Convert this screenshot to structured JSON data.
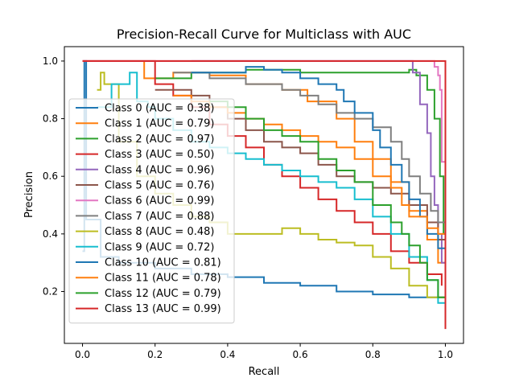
{
  "chart_data": {
    "type": "line",
    "title": "Precision-Recall Curve for Multiclass with AUC",
    "xlabel": "Recall",
    "ylabel": "Precision",
    "xlim": [
      -0.05,
      1.05
    ],
    "ylim": [
      0.02,
      1.05
    ],
    "xticks": [
      0.0,
      0.2,
      0.4,
      0.6,
      0.8,
      1.0
    ],
    "xtick_labels": [
      "0.0",
      "0.2",
      "0.4",
      "0.6",
      "0.8",
      "1.0"
    ],
    "yticks": [
      0.2,
      0.4,
      0.6,
      0.8,
      1.0
    ],
    "ytick_labels": [
      "0.2",
      "0.4",
      "0.6",
      "0.8",
      "1.0"
    ],
    "grid": false,
    "legend_position": "lower-left",
    "series": [
      {
        "name": "Class 0 (AUC = 0.38)",
        "color": "#1f77b4",
        "points": [
          [
            0.0,
            0.34
          ],
          [
            0.005,
            1.0
          ],
          [
            0.01,
            0.45
          ],
          [
            0.05,
            0.32
          ],
          [
            0.1,
            0.3
          ],
          [
            0.2,
            0.28
          ],
          [
            0.3,
            0.26
          ],
          [
            0.4,
            0.25
          ],
          [
            0.5,
            0.23
          ],
          [
            0.6,
            0.22
          ],
          [
            0.7,
            0.2
          ],
          [
            0.8,
            0.19
          ],
          [
            0.9,
            0.18
          ],
          [
            1.0,
            0.16
          ]
        ]
      },
      {
        "name": "Class 1 (AUC = 0.79)",
        "color": "#ff7f0e",
        "points": [
          [
            0.17,
            1.0
          ],
          [
            0.17,
            0.94
          ],
          [
            0.25,
            0.96
          ],
          [
            0.35,
            0.95
          ],
          [
            0.45,
            0.92
          ],
          [
            0.55,
            0.9
          ],
          [
            0.62,
            0.86
          ],
          [
            0.7,
            0.8
          ],
          [
            0.75,
            0.72
          ],
          [
            0.8,
            0.66
          ],
          [
            0.85,
            0.58
          ],
          [
            0.9,
            0.48
          ],
          [
            0.95,
            0.38
          ],
          [
            0.98,
            0.3
          ],
          [
            1.0,
            0.2
          ]
        ]
      },
      {
        "name": "Class 2 (AUC = 0.97)",
        "color": "#2ca02c",
        "points": [
          [
            0.2,
            0.94
          ],
          [
            0.3,
            0.96
          ],
          [
            0.45,
            0.97
          ],
          [
            0.6,
            0.96
          ],
          [
            0.75,
            0.96
          ],
          [
            0.9,
            0.97
          ],
          [
            0.92,
            0.95
          ],
          [
            0.95,
            0.9
          ],
          [
            0.97,
            0.8
          ],
          [
            0.985,
            0.6
          ],
          [
            0.995,
            0.4
          ],
          [
            1.0,
            0.1
          ]
        ]
      },
      {
        "name": "Class 3 (AUC = 0.50)",
        "color": "#d62728",
        "points": [
          [
            0.0,
            1.0
          ],
          [
            0.1,
            1.0
          ],
          [
            0.18,
            1.0
          ],
          [
            0.2,
            0.92
          ],
          [
            0.25,
            0.88
          ],
          [
            0.3,
            0.84
          ],
          [
            0.35,
            0.78
          ],
          [
            0.4,
            0.74
          ],
          [
            0.45,
            0.7
          ],
          [
            0.5,
            0.64
          ],
          [
            0.55,
            0.6
          ],
          [
            0.6,
            0.56
          ],
          [
            0.65,
            0.52
          ],
          [
            0.7,
            0.48
          ],
          [
            0.75,
            0.44
          ],
          [
            0.8,
            0.4
          ],
          [
            0.85,
            0.34
          ],
          [
            0.9,
            0.3
          ],
          [
            0.95,
            0.26
          ],
          [
            0.99,
            0.22
          ]
        ]
      },
      {
        "name": "Class 4 (AUC = 0.96)",
        "color": "#9467bd",
        "points": [
          [
            0.3,
            1.0
          ],
          [
            0.6,
            1.0
          ],
          [
            0.9,
            1.0
          ],
          [
            0.91,
            0.96
          ],
          [
            0.93,
            0.85
          ],
          [
            0.95,
            0.75
          ],
          [
            0.96,
            0.6
          ],
          [
            0.97,
            0.5
          ],
          [
            0.98,
            0.4
          ],
          [
            0.99,
            0.3
          ],
          [
            1.0,
            0.2
          ]
        ]
      },
      {
        "name": "Class 5 (AUC = 0.76)",
        "color": "#8c564b",
        "points": [
          [
            0.2,
            0.9
          ],
          [
            0.3,
            0.88
          ],
          [
            0.35,
            0.84
          ],
          [
            0.4,
            0.8
          ],
          [
            0.45,
            0.76
          ],
          [
            0.5,
            0.72
          ],
          [
            0.55,
            0.7
          ],
          [
            0.6,
            0.68
          ],
          [
            0.65,
            0.64
          ],
          [
            0.7,
            0.6
          ],
          [
            0.75,
            0.58
          ],
          [
            0.8,
            0.56
          ],
          [
            0.85,
            0.54
          ],
          [
            0.9,
            0.5
          ],
          [
            0.95,
            0.44
          ],
          [
            0.98,
            0.38
          ],
          [
            1.0,
            0.3
          ]
        ]
      },
      {
        "name": "Class 6 (AUC = 0.99)",
        "color": "#e377c2",
        "points": [
          [
            0.0,
            1.0
          ],
          [
            0.5,
            1.0
          ],
          [
            0.8,
            1.0
          ],
          [
            0.95,
            1.0
          ],
          [
            0.97,
            0.98
          ],
          [
            0.98,
            0.95
          ],
          [
            0.985,
            0.9
          ],
          [
            0.99,
            0.65
          ],
          [
            1.0,
            0.2
          ]
        ]
      },
      {
        "name": "Class 7 (AUC = 0.88)",
        "color": "#7f7f7f",
        "points": [
          [
            0.25,
            0.96
          ],
          [
            0.35,
            0.94
          ],
          [
            0.45,
            0.92
          ],
          [
            0.55,
            0.9
          ],
          [
            0.6,
            0.88
          ],
          [
            0.65,
            0.85
          ],
          [
            0.7,
            0.82
          ],
          [
            0.75,
            0.8
          ],
          [
            0.8,
            0.77
          ],
          [
            0.85,
            0.72
          ],
          [
            0.88,
            0.66
          ],
          [
            0.9,
            0.6
          ],
          [
            0.93,
            0.54
          ],
          [
            0.96,
            0.48
          ],
          [
            0.98,
            0.44
          ],
          [
            1.0,
            0.3
          ]
        ]
      },
      {
        "name": "Class 8 (AUC = 0.48)",
        "color": "#bcbd22",
        "points": [
          [
            0.04,
            0.9
          ],
          [
            0.05,
            0.96
          ],
          [
            0.06,
            0.92
          ],
          [
            0.1,
            0.72
          ],
          [
            0.15,
            0.6
          ],
          [
            0.2,
            0.54
          ],
          [
            0.25,
            0.5
          ],
          [
            0.3,
            0.46
          ],
          [
            0.35,
            0.44
          ],
          [
            0.4,
            0.4
          ],
          [
            0.45,
            0.4
          ],
          [
            0.5,
            0.4
          ],
          [
            0.55,
            0.42
          ],
          [
            0.6,
            0.4
          ],
          [
            0.65,
            0.38
          ],
          [
            0.7,
            0.37
          ],
          [
            0.75,
            0.36
          ],
          [
            0.8,
            0.32
          ],
          [
            0.85,
            0.28
          ],
          [
            0.9,
            0.22
          ],
          [
            0.95,
            0.18
          ],
          [
            1.0,
            0.15
          ]
        ]
      },
      {
        "name": "Class 9 (AUC = 0.72)",
        "color": "#17becf",
        "points": [
          [
            0.04,
            0.84
          ],
          [
            0.08,
            0.92
          ],
          [
            0.13,
            0.96
          ],
          [
            0.15,
            0.86
          ],
          [
            0.18,
            0.84
          ],
          [
            0.2,
            0.8
          ],
          [
            0.25,
            0.76
          ],
          [
            0.3,
            0.72
          ],
          [
            0.35,
            0.7
          ],
          [
            0.4,
            0.68
          ],
          [
            0.45,
            0.66
          ],
          [
            0.5,
            0.64
          ],
          [
            0.55,
            0.62
          ],
          [
            0.6,
            0.6
          ],
          [
            0.65,
            0.58
          ],
          [
            0.7,
            0.56
          ],
          [
            0.75,
            0.52
          ],
          [
            0.8,
            0.46
          ],
          [
            0.85,
            0.4
          ],
          [
            0.9,
            0.32
          ],
          [
            0.95,
            0.24
          ],
          [
            0.98,
            0.16
          ],
          [
            1.0,
            0.1
          ]
        ]
      },
      {
        "name": "Class 10 (AUC = 0.81)",
        "color": "#1f77b4",
        "points": [
          [
            0.3,
            0.96
          ],
          [
            0.45,
            0.98
          ],
          [
            0.5,
            0.97
          ],
          [
            0.55,
            0.96
          ],
          [
            0.6,
            0.94
          ],
          [
            0.65,
            0.92
          ],
          [
            0.7,
            0.9
          ],
          [
            0.72,
            0.86
          ],
          [
            0.75,
            0.82
          ],
          [
            0.8,
            0.76
          ],
          [
            0.82,
            0.7
          ],
          [
            0.85,
            0.64
          ],
          [
            0.88,
            0.58
          ],
          [
            0.9,
            0.52
          ],
          [
            0.93,
            0.46
          ],
          [
            0.95,
            0.4
          ],
          [
            0.98,
            0.35
          ],
          [
            1.0,
            0.2
          ]
        ]
      },
      {
        "name": "Class 11 (AUC = 0.78)",
        "color": "#ff7f0e",
        "points": [
          [
            0.25,
            0.88
          ],
          [
            0.3,
            0.86
          ],
          [
            0.35,
            0.84
          ],
          [
            0.4,
            0.82
          ],
          [
            0.45,
            0.8
          ],
          [
            0.5,
            0.78
          ],
          [
            0.55,
            0.76
          ],
          [
            0.6,
            0.74
          ],
          [
            0.65,
            0.72
          ],
          [
            0.7,
            0.7
          ],
          [
            0.75,
            0.66
          ],
          [
            0.8,
            0.6
          ],
          [
            0.85,
            0.56
          ],
          [
            0.88,
            0.5
          ],
          [
            0.9,
            0.46
          ],
          [
            0.95,
            0.42
          ],
          [
            0.98,
            0.4
          ],
          [
            1.0,
            0.3
          ]
        ]
      },
      {
        "name": "Class 12 (AUC = 0.79)",
        "color": "#2ca02c",
        "points": [
          [
            0.35,
            0.86
          ],
          [
            0.4,
            0.84
          ],
          [
            0.45,
            0.8
          ],
          [
            0.5,
            0.76
          ],
          [
            0.55,
            0.74
          ],
          [
            0.6,
            0.72
          ],
          [
            0.65,
            0.66
          ],
          [
            0.7,
            0.62
          ],
          [
            0.75,
            0.58
          ],
          [
            0.8,
            0.5
          ],
          [
            0.85,
            0.44
          ],
          [
            0.88,
            0.4
          ],
          [
            0.9,
            0.36
          ],
          [
            0.93,
            0.3
          ],
          [
            0.95,
            0.24
          ],
          [
            0.98,
            0.18
          ],
          [
            1.0,
            0.1
          ]
        ]
      },
      {
        "name": "Class 13 (AUC = 0.99)",
        "color": "#d62728",
        "points": [
          [
            0.0,
            1.0
          ],
          [
            0.3,
            1.0
          ],
          [
            0.6,
            1.0
          ],
          [
            0.9,
            1.0
          ],
          [
            0.95,
            1.0
          ],
          [
            1.0,
            1.0
          ],
          [
            1.0,
            0.8
          ],
          [
            1.0,
            0.4
          ],
          [
            1.0,
            0.07
          ]
        ]
      }
    ]
  }
}
